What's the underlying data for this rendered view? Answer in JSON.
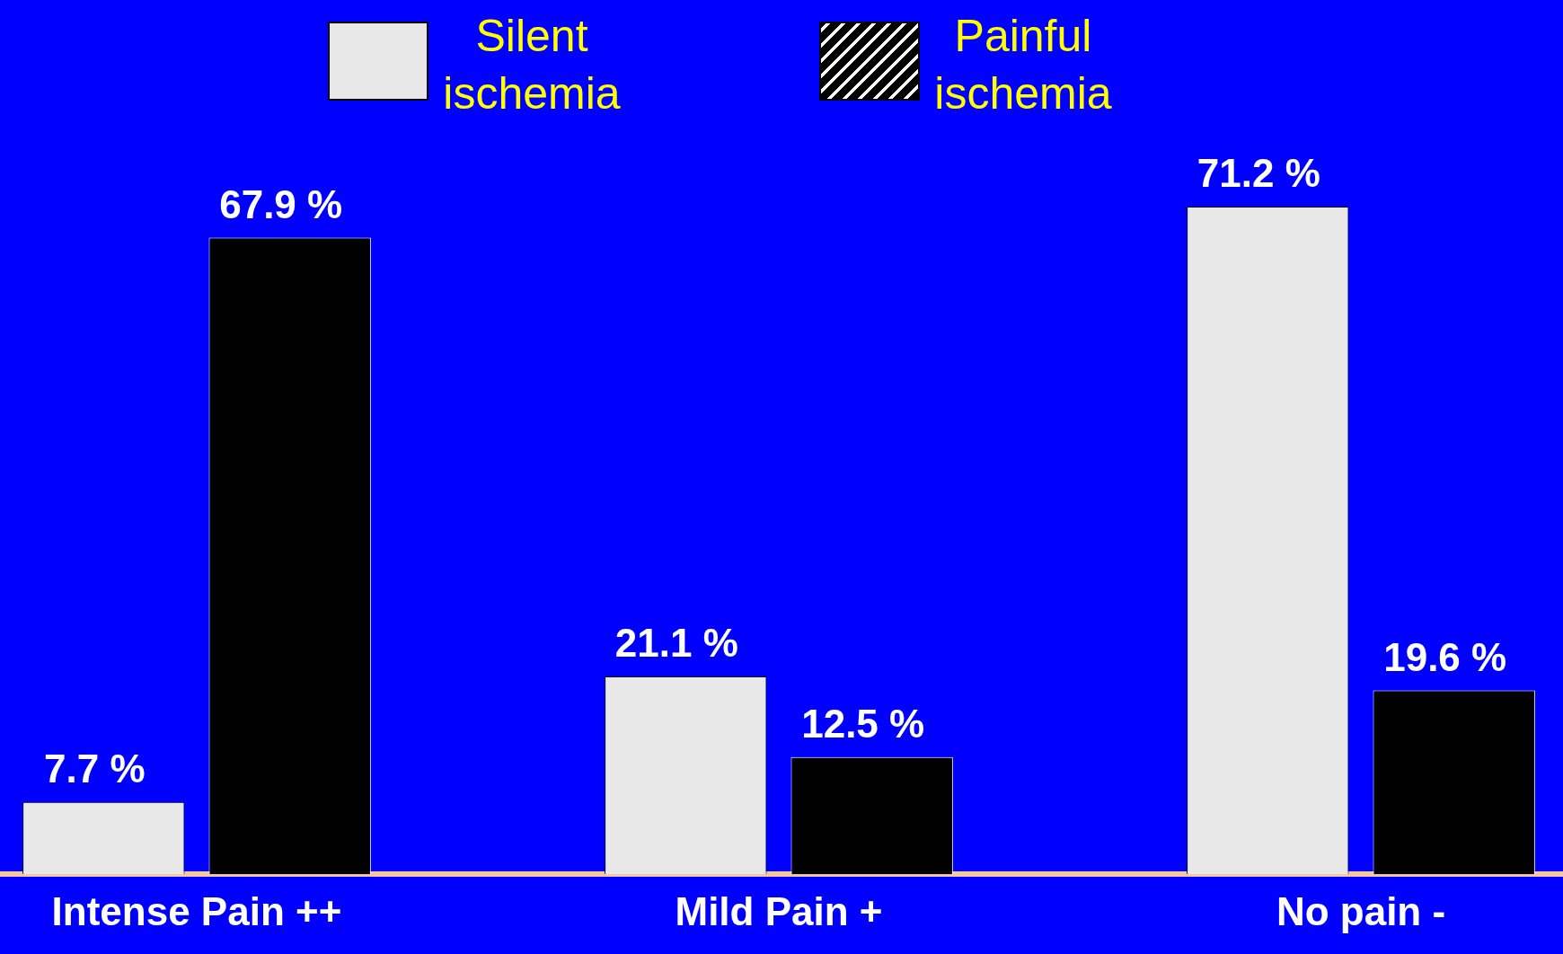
{
  "chart_data": {
    "type": "bar",
    "categories": [
      "Intense Pain ++",
      "Mild Pain +",
      "No pain -"
    ],
    "series": [
      {
        "name": "Silent ischemia",
        "color": "#e8e8e8",
        "values": [
          7.7,
          21.1,
          71.2
        ],
        "value_labels": [
          "7.7 %",
          "21.1 %",
          "71.2 %"
        ]
      },
      {
        "name": "Painful ischemia",
        "color": "#000000",
        "values": [
          67.9,
          12.5,
          19.6
        ],
        "value_labels": [
          "67.9 %",
          "12.5 %",
          "19.6 %"
        ]
      }
    ],
    "legend": "top",
    "grid": false
  }
}
